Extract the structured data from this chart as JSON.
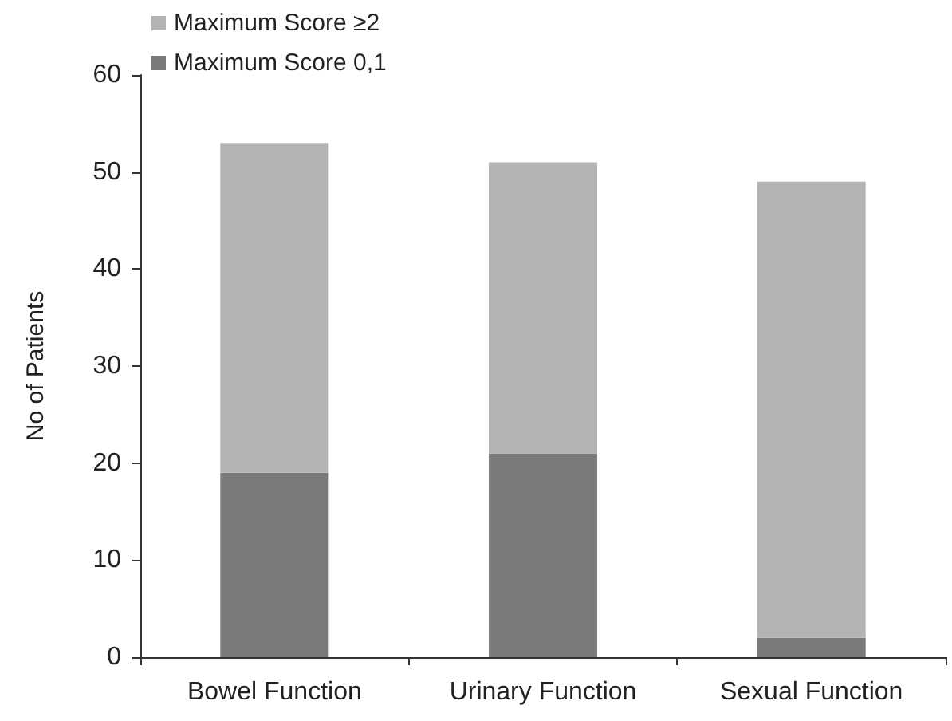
{
  "chart_data": {
    "type": "bar",
    "stacked": true,
    "ylabel": "No of Patients",
    "categories": [
      "Bowel Function",
      "Urinary Function",
      "Sexual Function"
    ],
    "series": [
      {
        "name": "Maximum Score 0,1",
        "color": "#7a7a7c",
        "values": [
          19,
          21,
          2
        ]
      },
      {
        "name": "Maximum Score ≥2",
        "color": "#b3b3b3",
        "values": [
          34,
          30,
          47
        ]
      }
    ],
    "ylim": [
      0,
      60
    ],
    "yticks": [
      0,
      10,
      20,
      30,
      40,
      50,
      60
    ],
    "grid": false,
    "legend": "top left"
  }
}
